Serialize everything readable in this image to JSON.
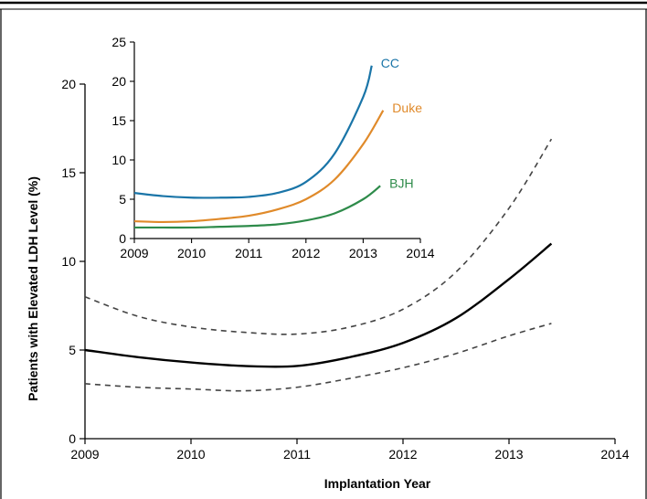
{
  "chart_data": [
    {
      "type": "line",
      "xlabel": "Implantation Year",
      "ylabel": "Patients with Elevated LDH Level (%)",
      "xlim": [
        2009,
        2014
      ],
      "ylim": [
        0,
        20
      ],
      "xticks": [
        "2009",
        "2010",
        "2011",
        "2012",
        "2013",
        "2014"
      ],
      "yticks": [
        "0",
        "5",
        "10",
        "15",
        "20"
      ],
      "grid": false,
      "colors": {
        "estimate": "#000000",
        "bounds": "#444444"
      },
      "series": [
        {
          "x": [
            2009.0,
            2009.5,
            2010.0,
            2010.5,
            2011.0,
            2011.5,
            2012.0,
            2012.5,
            2013.0,
            2013.4
          ],
          "values": [
            5.0,
            4.6,
            4.3,
            4.1,
            4.1,
            4.6,
            5.4,
            6.8,
            9.0,
            11.0
          ],
          "style": "solid"
        },
        {
          "x": [
            2009.0,
            2009.5,
            2010.0,
            2010.5,
            2011.0,
            2011.5,
            2012.0,
            2012.5,
            2013.0,
            2013.4
          ],
          "values": [
            8.0,
            6.9,
            6.3,
            6.0,
            5.9,
            6.3,
            7.3,
            9.4,
            13.0,
            16.9
          ],
          "style": "dashed"
        },
        {
          "x": [
            2009.0,
            2009.5,
            2010.0,
            2010.5,
            2011.0,
            2011.5,
            2012.0,
            2012.5,
            2013.0,
            2013.4
          ],
          "values": [
            3.1,
            2.9,
            2.8,
            2.7,
            2.9,
            3.4,
            4.0,
            4.8,
            5.8,
            6.5
          ],
          "style": "dashed"
        }
      ]
    },
    {
      "type": "line",
      "inset": true,
      "xlim": [
        2009,
        2014
      ],
      "ylim": [
        0,
        25
      ],
      "xticks": [
        "2009",
        "2010",
        "2011",
        "2012",
        "2013",
        "2014"
      ],
      "yticks": [
        "0",
        "5",
        "10",
        "15",
        "20",
        "25"
      ],
      "grid": false,
      "series": [
        {
          "name": "CC",
          "color": "#1a75a8",
          "x": [
            2009.0,
            2009.5,
            2010.0,
            2010.5,
            2011.0,
            2011.5,
            2012.0,
            2012.5,
            2013.0,
            2013.15
          ],
          "values": [
            5.8,
            5.4,
            5.2,
            5.2,
            5.3,
            5.8,
            7.2,
            10.8,
            18.0,
            22.0
          ]
        },
        {
          "name": "Duke",
          "color": "#e08a2a",
          "x": [
            2009.0,
            2009.5,
            2010.0,
            2010.5,
            2011.0,
            2011.5,
            2012.0,
            2012.5,
            2013.0,
            2013.35
          ],
          "values": [
            2.2,
            2.1,
            2.2,
            2.5,
            2.9,
            3.7,
            5.0,
            7.5,
            12.0,
            16.3
          ]
        },
        {
          "name": "BJH",
          "color": "#2e8b4a",
          "x": [
            2009.0,
            2009.5,
            2010.0,
            2010.5,
            2011.0,
            2011.5,
            2012.0,
            2012.5,
            2013.0,
            2013.3
          ],
          "values": [
            1.4,
            1.4,
            1.4,
            1.5,
            1.6,
            1.8,
            2.3,
            3.2,
            5.0,
            6.7
          ]
        }
      ]
    }
  ]
}
